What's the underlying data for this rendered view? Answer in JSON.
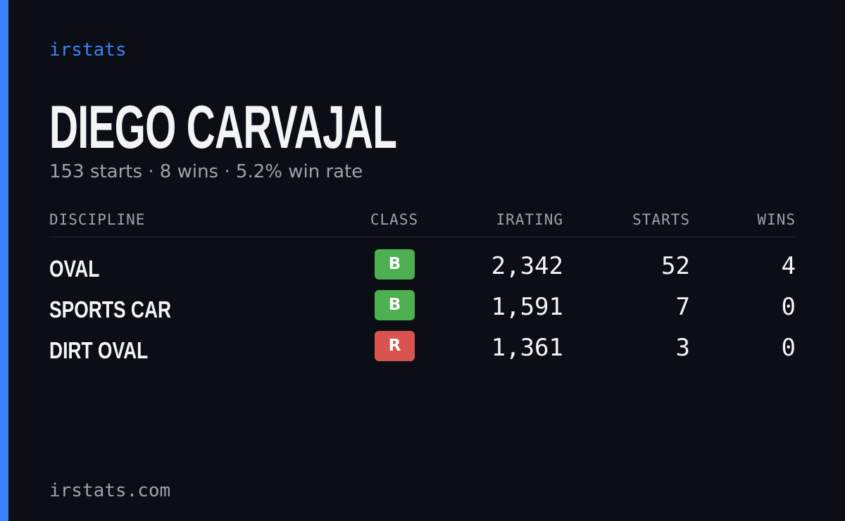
{
  "brand": "irstats",
  "driver": {
    "name": "DIEGO CARVAJAL",
    "summary": "153 starts · 8 wins · 5.2% win rate"
  },
  "table": {
    "headers": [
      "DISCIPLINE",
      "CLASS",
      "IRATING",
      "STARTS",
      "WINS"
    ],
    "rows": [
      {
        "discipline": "OVAL",
        "class": "B",
        "class_color": "#4caf50",
        "irating": "2,342",
        "starts": "52",
        "wins": "4"
      },
      {
        "discipline": "SPORTS CAR",
        "class": "B",
        "class_color": "#4caf50",
        "irating": "1,591",
        "starts": "7",
        "wins": "0"
      },
      {
        "discipline": "DIRT OVAL",
        "class": "R",
        "class_color": "#d9534f",
        "irating": "1,361",
        "starts": "3",
        "wins": "0"
      }
    ]
  },
  "footer": "irstats.com"
}
